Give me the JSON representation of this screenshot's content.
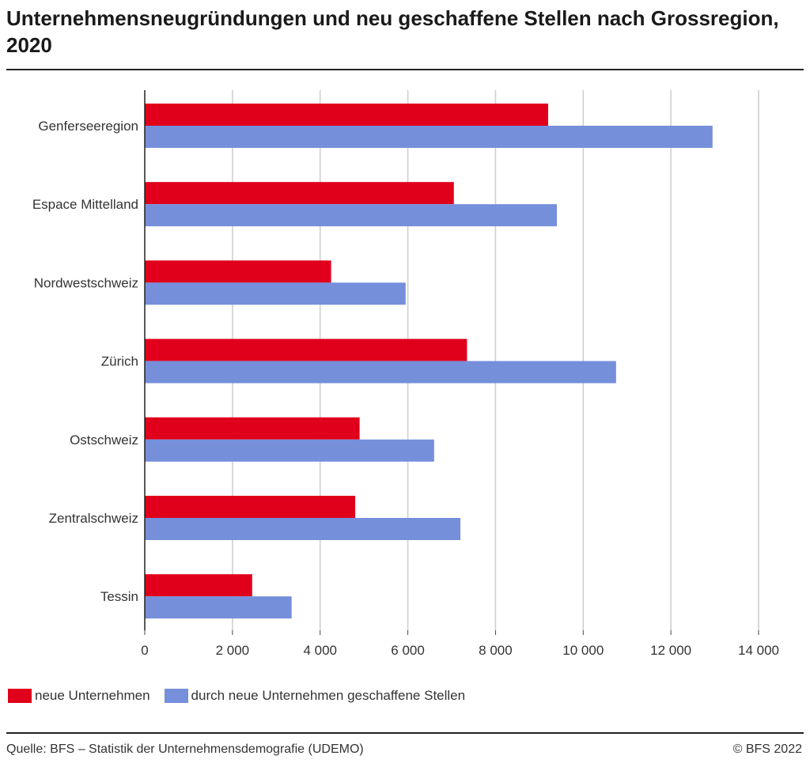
{
  "chart_data": {
    "type": "bar",
    "orientation": "horizontal",
    "title": "Unternehmensneugründungen und neu geschaffene Stellen nach Grossregion, 2020",
    "categories": [
      "Genferseeregion",
      "Espace Mittelland",
      "Nordwestschweiz",
      "Zürich",
      "Ostschweiz",
      "Zentralschweiz",
      "Tessin"
    ],
    "series": [
      {
        "name": "neue Unternehmen",
        "color": "#e0001b",
        "values": [
          9200,
          7050,
          4250,
          7350,
          4900,
          4800,
          2450
        ]
      },
      {
        "name": "durch neue Unternehmen geschaffene Stellen",
        "color": "#768fdb",
        "values": [
          12950,
          9400,
          5950,
          10750,
          6600,
          7200,
          3350
        ]
      }
    ],
    "xlim": [
      0,
      14000
    ],
    "xticks": [
      0,
      2000,
      4000,
      6000,
      8000,
      10000,
      12000,
      14000
    ],
    "xtick_labels": [
      "0",
      "2 000",
      "4 000",
      "6 000",
      "8 000",
      "10 000",
      "12 000",
      "14 000"
    ],
    "grid": true,
    "legend_position": "bottom-left"
  },
  "footer": {
    "source": "Quelle: BFS – Statistik der Unternehmensdemografie (UDEMO)",
    "copyright": "© BFS 2022"
  }
}
